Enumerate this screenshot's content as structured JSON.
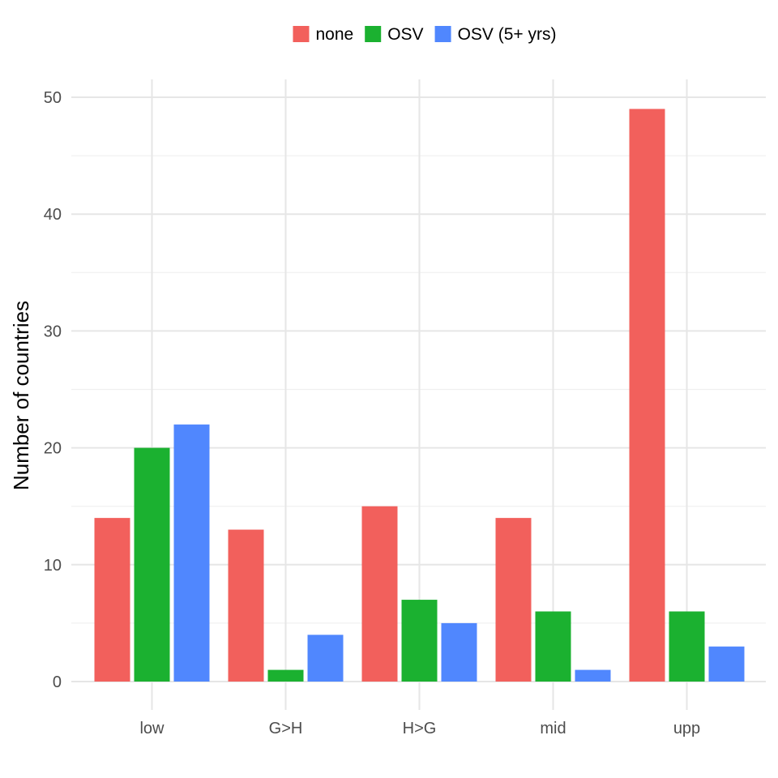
{
  "chart_data": {
    "type": "bar",
    "categories": [
      "low",
      "G>H",
      "H>G",
      "mid",
      "upp"
    ],
    "series": [
      {
        "name": "none",
        "color": "#f2605c",
        "values": [
          14,
          13,
          15,
          14,
          49
        ]
      },
      {
        "name": "OSV",
        "color": "#1bb130",
        "values": [
          20,
          1,
          7,
          6,
          6
        ]
      },
      {
        "name": "OSV (5+ yrs)",
        "color": "#5087fe",
        "values": [
          22,
          4,
          5,
          1,
          3
        ]
      }
    ],
    "title": "",
    "xlabel": "",
    "ylabel": "Number of countries",
    "ylim": [
      0,
      50
    ],
    "yticks": [
      0,
      10,
      20,
      30,
      40,
      50
    ],
    "grid": true,
    "legend_position": "top"
  }
}
